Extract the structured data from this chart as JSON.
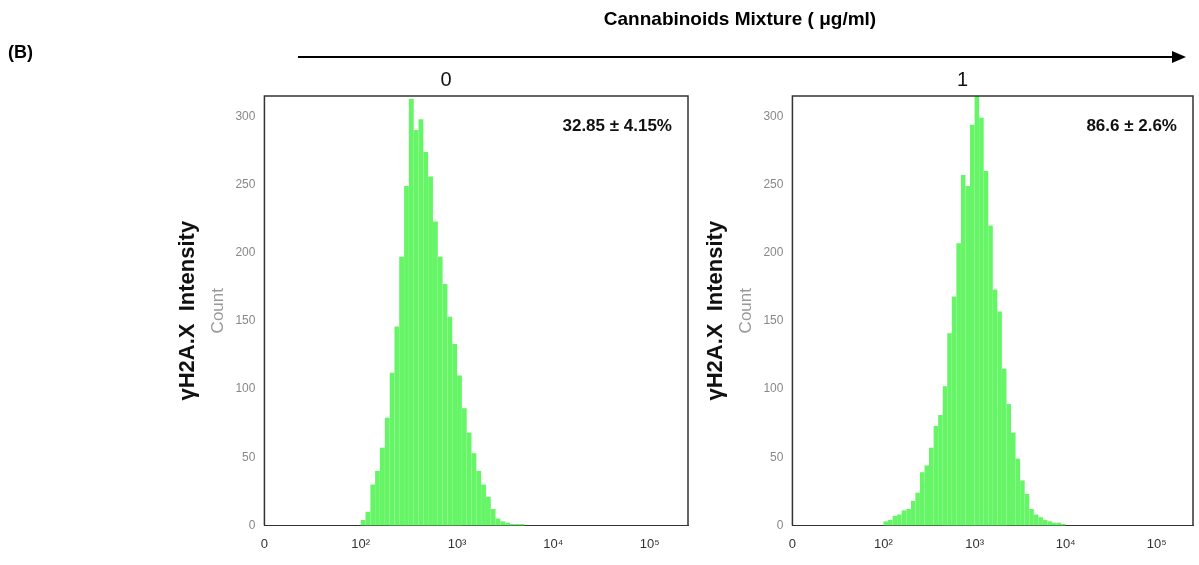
{
  "chart_data": [
    {
      "type": "histogram",
      "title": "0",
      "ylabel": "Count",
      "color": "#66f566",
      "annotations": [
        "32.85 ± 4.15%",
        "γH2A.X  Intensity",
        "(B)",
        "Cannabinoids Mixture ( μg/ml)"
      ],
      "log": "x",
      "bins": [
        100,
        112,
        126,
        141,
        158,
        178,
        200,
        224,
        251,
        282,
        316,
        355,
        398,
        447,
        501,
        562,
        631,
        708,
        794,
        891,
        1000,
        1122,
        1259,
        1413,
        1585,
        1778,
        1995,
        2239,
        2512,
        2818,
        3162,
        3548,
        3981,
        4467,
        5012,
        5623,
        6310,
        7079,
        7943,
        8913,
        10000
      ],
      "values": [
        4,
        10,
        30,
        40,
        57,
        79,
        112,
        146,
        197,
        249,
        313,
        290,
        298,
        274,
        256,
        223,
        197,
        177,
        153,
        133,
        110,
        86,
        68,
        53,
        40,
        30,
        21,
        12,
        5,
        3,
        2,
        1,
        1,
        1,
        0,
        0,
        0,
        0,
        0,
        0
      ],
      "xlim": [
        0,
        250000
      ],
      "xticks": [
        0,
        {
          "value": 100,
          "label": "10²"
        },
        {
          "value": 1000,
          "label": "10³"
        },
        {
          "value": 10000,
          "label": "10⁴"
        },
        {
          "value": 100000,
          "label": "10⁵"
        }
      ],
      "ylim": [
        0,
        315
      ],
      "yticks": [
        0,
        50,
        100,
        150,
        200,
        250,
        300
      ],
      "grid": false,
      "legend": false
    },
    {
      "type": "histogram",
      "title": "1",
      "ylabel": "Count",
      "color": "#66f566",
      "annotations": [
        "86.6 ± 2.6%",
        "γH2A.X  Intensity"
      ],
      "log": "x",
      "bins": [
        100,
        112,
        126,
        141,
        158,
        178,
        200,
        224,
        251,
        282,
        316,
        355,
        398,
        447,
        501,
        562,
        631,
        708,
        794,
        891,
        1000,
        1122,
        1259,
        1413,
        1585,
        1778,
        1995,
        2239,
        2512,
        2818,
        3162,
        3548,
        3981,
        4467,
        5012,
        5623,
        6310,
        7079,
        7943,
        8913,
        10000
      ],
      "values": [
        3,
        4,
        7,
        8,
        11,
        12,
        18,
        24,
        39,
        44,
        57,
        73,
        81,
        102,
        141,
        168,
        207,
        257,
        249,
        294,
        315,
        299,
        260,
        220,
        173,
        157,
        115,
        89,
        68,
        49,
        33,
        23,
        12,
        8,
        6,
        4,
        3,
        2,
        2,
        1
      ],
      "xlim": [
        0,
        250000
      ],
      "xticks": [
        0,
        {
          "value": 100,
          "label": "10²"
        },
        {
          "value": 1000,
          "label": "10³"
        },
        {
          "value": 10000,
          "label": "10⁴"
        },
        {
          "value": 100000,
          "label": "10⁵"
        }
      ],
      "ylim": [
        0,
        315
      ],
      "yticks": [
        0,
        50,
        100,
        150,
        200,
        250,
        300
      ],
      "grid": false,
      "legend": false
    }
  ]
}
